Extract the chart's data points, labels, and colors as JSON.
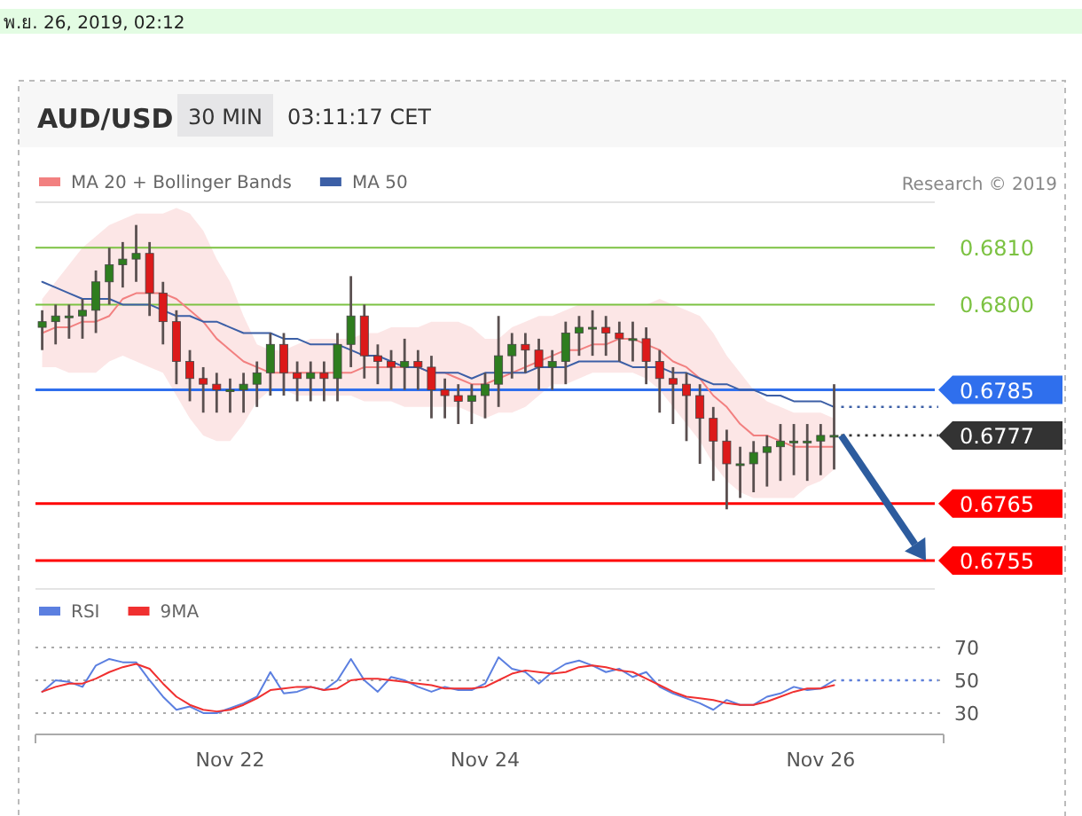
{
  "chart_data": [
    {
      "type": "candlestick",
      "title": "AUD/USD",
      "subtitle": "03:11:17 CET",
      "annotations": [
        "พ.ย. 26, 2019, 02:12",
        "30 MIN",
        "Research © 2019"
      ],
      "categories": [
        null,
        null,
        null,
        null,
        null,
        null,
        null,
        null,
        null,
        null,
        null,
        null,
        null,
        null,
        null,
        null,
        null,
        null,
        null,
        null,
        null,
        null,
        null,
        null,
        null,
        null,
        null,
        null,
        null,
        null,
        null,
        null,
        null,
        null,
        null,
        null,
        null,
        null,
        null,
        null,
        null,
        null,
        null,
        null,
        null,
        null,
        null,
        null,
        null,
        null,
        null,
        null,
        null,
        null,
        null,
        null,
        null,
        null,
        null,
        null
      ],
      "ohlc": [
        [
          0.6796,
          0.6799,
          0.6792,
          0.6797
        ],
        [
          0.6797,
          0.68,
          0.6793,
          0.6798
        ],
        [
          0.6798,
          0.68,
          0.6794,
          0.6798
        ],
        [
          0.6798,
          0.6801,
          0.6794,
          0.6799
        ],
        [
          0.6799,
          0.6806,
          0.6795,
          0.6804
        ],
        [
          0.6804,
          0.681,
          0.68,
          0.6807
        ],
        [
          0.6807,
          0.6811,
          0.6803,
          0.6808
        ],
        [
          0.6808,
          0.6814,
          0.6804,
          0.6809
        ],
        [
          0.6809,
          0.6811,
          0.6798,
          0.6802
        ],
        [
          0.6802,
          0.6804,
          0.6793,
          0.6797
        ],
        [
          0.6797,
          0.6799,
          0.6786,
          0.679
        ],
        [
          0.679,
          0.6792,
          0.6783,
          0.6787
        ],
        [
          0.6787,
          0.6789,
          0.6781,
          0.6786
        ],
        [
          0.6786,
          0.6788,
          0.6781,
          0.6785
        ],
        [
          0.6785,
          0.6787,
          0.6781,
          0.6785
        ],
        [
          0.6785,
          0.6788,
          0.6781,
          0.6786
        ],
        [
          0.6786,
          0.679,
          0.6782,
          0.6788
        ],
        [
          0.6788,
          0.6795,
          0.6784,
          0.6793
        ],
        [
          0.6793,
          0.6795,
          0.6784,
          0.6788
        ],
        [
          0.6788,
          0.679,
          0.6783,
          0.6787
        ],
        [
          0.6787,
          0.679,
          0.6783,
          0.6788
        ],
        [
          0.6788,
          0.679,
          0.6783,
          0.6787
        ],
        [
          0.6787,
          0.6795,
          0.6783,
          0.6793
        ],
        [
          0.6793,
          0.6805,
          0.6789,
          0.6798
        ],
        [
          0.6798,
          0.68,
          0.6787,
          0.6791
        ],
        [
          0.6791,
          0.6793,
          0.6786,
          0.679
        ],
        [
          0.679,
          0.6792,
          0.6785,
          0.6789
        ],
        [
          0.6789,
          0.6794,
          0.6785,
          0.679
        ],
        [
          0.679,
          0.6792,
          0.6785,
          0.6789
        ],
        [
          0.6789,
          0.6791,
          0.678,
          0.6785
        ],
        [
          0.6785,
          0.6787,
          0.678,
          0.6784
        ],
        [
          0.6784,
          0.6786,
          0.6779,
          0.6783
        ],
        [
          0.6783,
          0.6786,
          0.6779,
          0.6784
        ],
        [
          0.6784,
          0.6788,
          0.678,
          0.6786
        ],
        [
          0.6786,
          0.6798,
          0.6782,
          0.6791
        ],
        [
          0.6791,
          0.6795,
          0.6787,
          0.6793
        ],
        [
          0.6793,
          0.6795,
          0.6788,
          0.6792
        ],
        [
          0.6792,
          0.6794,
          0.6785,
          0.6789
        ],
        [
          0.6789,
          0.6792,
          0.6785,
          0.679
        ],
        [
          0.679,
          0.6797,
          0.6786,
          0.6795
        ],
        [
          0.6795,
          0.6798,
          0.6791,
          0.6796
        ],
        [
          0.6796,
          0.6799,
          0.6791,
          0.6796
        ],
        [
          0.6796,
          0.6798,
          0.6791,
          0.6795
        ],
        [
          0.6795,
          0.6797,
          0.679,
          0.6794
        ],
        [
          0.6794,
          0.6797,
          0.679,
          0.6794
        ],
        [
          0.6794,
          0.6796,
          0.6786,
          0.679
        ],
        [
          0.679,
          0.6792,
          0.6781,
          0.6787
        ],
        [
          0.6787,
          0.6789,
          0.6779,
          0.6786
        ],
        [
          0.6786,
          0.6788,
          0.6776,
          0.6784
        ],
        [
          0.6784,
          0.6786,
          0.6772,
          0.678
        ],
        [
          0.678,
          0.6782,
          0.6769,
          0.6776
        ],
        [
          0.6776,
          0.6778,
          0.6764,
          0.6772
        ],
        [
          0.6772,
          0.6775,
          0.6766,
          0.6772
        ],
        [
          0.6772,
          0.6776,
          0.6767,
          0.6774
        ],
        [
          0.6774,
          0.6777,
          0.6768,
          0.6775
        ],
        [
          0.6775,
          0.6779,
          0.6769,
          0.6776
        ],
        [
          0.6776,
          0.6779,
          0.677,
          0.6776
        ],
        [
          0.6776,
          0.6779,
          0.6769,
          0.6776
        ],
        [
          0.6776,
          0.6779,
          0.677,
          0.6777
        ],
        [
          0.6777,
          0.6786,
          0.6771,
          0.6777
        ]
      ],
      "series": [
        {
          "name": "MA 20 + Bollinger Bands",
          "type": "line",
          "color": "#f28080",
          "values": [
            0.6795,
            0.6796,
            0.6796,
            0.6797,
            0.6797,
            0.6798,
            0.6801,
            0.6802,
            0.6802,
            0.6802,
            0.6801,
            0.6799,
            0.6797,
            0.6794,
            0.6792,
            0.679,
            0.6789,
            0.6788,
            0.6788,
            0.6788,
            0.6788,
            0.6788,
            0.6788,
            0.6788,
            0.6789,
            0.6789,
            0.6789,
            0.6789,
            0.6789,
            0.6788,
            0.6788,
            0.6787,
            0.6786,
            0.6786,
            0.6787,
            0.6788,
            0.6789,
            0.679,
            0.6791,
            0.6792,
            0.6792,
            0.6793,
            0.6793,
            0.6794,
            0.6794,
            0.6793,
            0.6792,
            0.679,
            0.6789,
            0.6787,
            0.6784,
            0.6782,
            0.6779,
            0.6777,
            0.6777,
            0.6776,
            0.6775,
            0.6775,
            0.6775,
            0.6775
          ],
          "upper": [
            0.6801,
            0.6804,
            0.6807,
            0.681,
            0.6812,
            0.6814,
            0.6815,
            0.6816,
            0.6816,
            0.6816,
            0.6817,
            0.6816,
            0.6813,
            0.6808,
            0.6804,
            0.6798,
            0.6793,
            0.6792,
            0.6792,
            0.6793,
            0.6794,
            0.6794,
            0.6794,
            0.6794,
            0.6795,
            0.6795,
            0.6796,
            0.6796,
            0.6796,
            0.6797,
            0.6797,
            0.6797,
            0.6796,
            0.6794,
            0.6794,
            0.6796,
            0.6797,
            0.6798,
            0.6798,
            0.6799,
            0.68,
            0.68,
            0.68,
            0.68,
            0.68,
            0.68,
            0.6801,
            0.68,
            0.6799,
            0.6798,
            0.6795,
            0.6791,
            0.6788,
            0.6785,
            0.6783,
            0.6782,
            0.6781,
            0.6781,
            0.6781,
            0.678
          ],
          "lower": [
            0.6789,
            0.6789,
            0.6788,
            0.6788,
            0.6788,
            0.679,
            0.6791,
            0.679,
            0.6789,
            0.6788,
            0.6784,
            0.678,
            0.6777,
            0.6776,
            0.6776,
            0.6779,
            0.6783,
            0.6785,
            0.6785,
            0.6784,
            0.6784,
            0.6784,
            0.6784,
            0.6784,
            0.6783,
            0.6783,
            0.6783,
            0.6782,
            0.6782,
            0.6782,
            0.6782,
            0.6782,
            0.6781,
            0.678,
            0.6781,
            0.6781,
            0.6782,
            0.6784,
            0.6786,
            0.6786,
            0.6787,
            0.6788,
            0.6788,
            0.6788,
            0.6788,
            0.6787,
            0.6785,
            0.6782,
            0.6779,
            0.6776,
            0.6772,
            0.6769,
            0.6767,
            0.6766,
            0.6766,
            0.6766,
            0.6766,
            0.6768,
            0.6769,
            0.6771
          ]
        },
        {
          "name": "MA 50",
          "type": "line",
          "color": "#3c5fa6",
          "values": [
            0.6804,
            0.6803,
            0.6802,
            0.6801,
            0.6801,
            0.6801,
            0.68,
            0.68,
            0.68,
            0.6799,
            0.6798,
            0.6798,
            0.6797,
            0.6797,
            0.6796,
            0.6795,
            0.6795,
            0.6795,
            0.6794,
            0.6794,
            0.6793,
            0.6793,
            0.6793,
            0.6792,
            0.6791,
            0.6791,
            0.679,
            0.6789,
            0.6789,
            0.6788,
            0.6788,
            0.6788,
            0.6787,
            0.6788,
            0.6788,
            0.6788,
            0.6788,
            0.6789,
            0.6789,
            0.6789,
            0.679,
            0.679,
            0.679,
            0.679,
            0.6789,
            0.6789,
            0.6789,
            0.6788,
            0.6788,
            0.6787,
            0.6786,
            0.6786,
            0.6785,
            0.6785,
            0.6784,
            0.6784,
            0.6783,
            0.6783,
            0.6783,
            0.6782
          ]
        }
      ],
      "ylim": [
        0.675,
        0.6818
      ],
      "yticks": [
        {
          "value": 0.681,
          "label": "0.6810"
        },
        {
          "value": 0.68,
          "label": "0.6800"
        },
        {
          "value": 0.6785,
          "label": "0.6785"
        },
        {
          "value": 0.6777,
          "label": "0.6777"
        },
        {
          "value": 0.6765,
          "label": "0.6765"
        },
        {
          "value": 0.6755,
          "label": "0.6755"
        }
      ],
      "ref_lines": [
        {
          "axis": "y",
          "value": 0.681,
          "color": "#7cc242"
        },
        {
          "axis": "y",
          "value": 0.68,
          "color": "#7cc242"
        },
        {
          "axis": "y",
          "value": 0.6785,
          "color": "#2f6fed"
        },
        {
          "axis": "y",
          "value": 0.6765,
          "color": "#ff0000"
        },
        {
          "axis": "y",
          "value": 0.6755,
          "color": "#ff0000"
        }
      ],
      "legend": "top left",
      "tick_labels": "y"
    },
    {
      "type": "line",
      "categories": [
        null,
        null,
        null,
        null,
        null,
        null,
        null,
        null,
        null,
        null,
        null,
        null,
        null,
        null,
        "Nov 22",
        null,
        null,
        null,
        null,
        null,
        null,
        null,
        null,
        null,
        null,
        null,
        null,
        null,
        null,
        null,
        null,
        null,
        null,
        "Nov 24",
        null,
        null,
        null,
        null,
        null,
        null,
        null,
        null,
        null,
        null,
        null,
        null,
        null,
        null,
        null,
        null,
        null,
        null,
        null,
        null,
        null,
        null,
        null,
        null,
        "Nov 26",
        null
      ],
      "series": [
        {
          "name": "RSI",
          "color": "#5b7fe0",
          "values": [
            43,
            50,
            49,
            46,
            59,
            63,
            61,
            61,
            50,
            40,
            32,
            34,
            30,
            30,
            33,
            36,
            40,
            55,
            42,
            43,
            46,
            44,
            50,
            63,
            50,
            43,
            52,
            50,
            46,
            43,
            46,
            44,
            44,
            48,
            64,
            57,
            55,
            48,
            55,
            60,
            62,
            59,
            55,
            57,
            52,
            55,
            46,
            42,
            39,
            36,
            32,
            38,
            35,
            35,
            40,
            42,
            46,
            44,
            45,
            50
          ]
        },
        {
          "name": "9MA",
          "color": "#f03030",
          "values": [
            43,
            46,
            48,
            48,
            51,
            55,
            58,
            60,
            57,
            48,
            40,
            35,
            32,
            31,
            32,
            35,
            39,
            44,
            45,
            46,
            46,
            44,
            45,
            50,
            51,
            51,
            50,
            49,
            48,
            47,
            45,
            45,
            45,
            46,
            50,
            54,
            56,
            55,
            54,
            55,
            58,
            59,
            58,
            56,
            55,
            51,
            47,
            43,
            40,
            39,
            38,
            36,
            35,
            35,
            37,
            40,
            43,
            45,
            45,
            47
          ]
        }
      ],
      "ylim": [
        17,
        70
      ],
      "yticks": [
        30,
        50,
        70
      ],
      "grid": "y",
      "legend": "top left"
    }
  ]
}
